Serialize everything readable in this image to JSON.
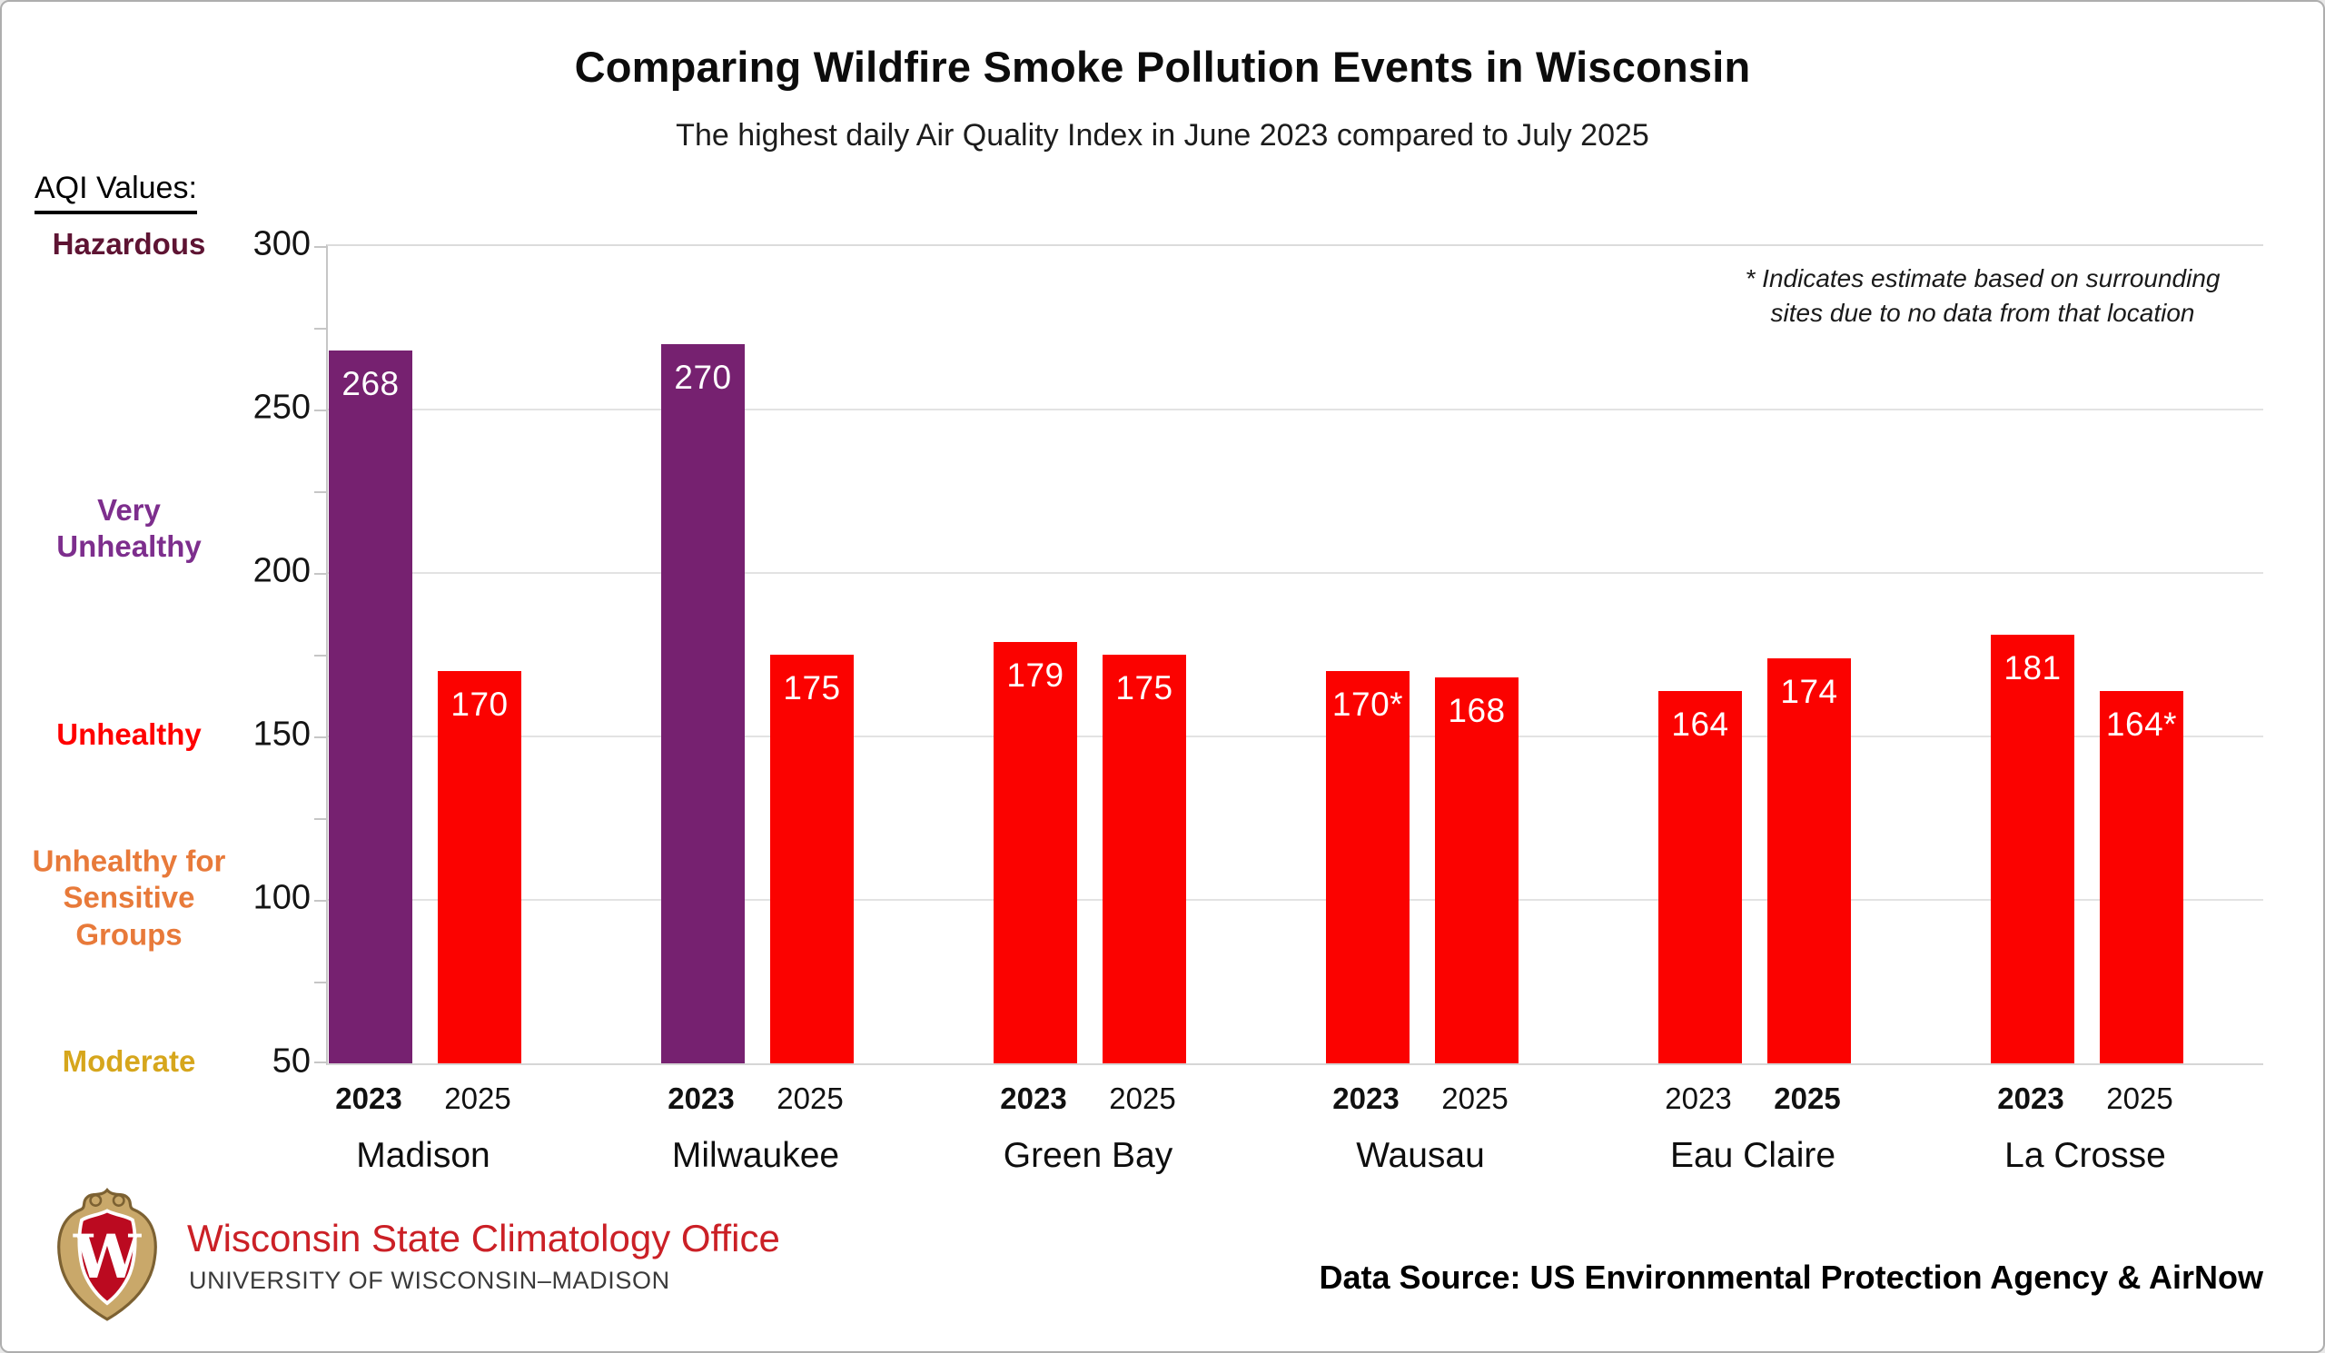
{
  "chart_data": {
    "type": "bar",
    "title": "Comparing Wildfire Smoke Pollution Events in Wisconsin",
    "subtitle": "The highest daily Air Quality Index in June 2023 compared to July 2025",
    "categories": [
      "Madison",
      "Milwaukee",
      "Green Bay",
      "Wausau",
      "Eau Claire",
      "La Crosse"
    ],
    "series": [
      {
        "name": "2023",
        "values": [
          268,
          270,
          179,
          170,
          164,
          181
        ],
        "display_labels": [
          "268",
          "270",
          "179",
          "170*",
          "164",
          "181"
        ]
      },
      {
        "name": "2025",
        "values": [
          170,
          175,
          175,
          168,
          174,
          164
        ],
        "display_labels": [
          "170",
          "175",
          "175",
          "168",
          "174",
          "164*"
        ]
      }
    ],
    "emphasized_year_per_city": [
      "2023",
      "2023",
      "2023",
      "2023",
      "2025",
      "2023"
    ],
    "ylabel": "",
    "xlabel": "",
    "ylim": [
      50,
      300
    ],
    "yticks": [
      300,
      250,
      200,
      150,
      100,
      50
    ],
    "minor_tick_step": 25,
    "gridlines_at": [
      250,
      200,
      150,
      100
    ],
    "grid": "horizontal, light gray",
    "legend_position": "none",
    "bar_colors": {
      "very_unhealthy_purple": "#762170",
      "unhealthy_red": "#FB0200",
      "purple_threshold": 200
    },
    "annotation": {
      "lines": [
        "* Indicates estimate based on surrounding",
        "sites due to no data from that location"
      ]
    }
  },
  "aqi_scale": {
    "heading": "AQI Values:",
    "labels": [
      {
        "lines": [
          "Hazardous"
        ],
        "color": "#5E1433",
        "aqi_level": 300
      },
      {
        "lines": [
          "Very",
          "Unhealthy"
        ],
        "color": "#7D2E8D",
        "aqi_level": 213
      },
      {
        "lines": [
          "Unhealthy"
        ],
        "color": "#FF0000",
        "aqi_level": 150
      },
      {
        "lines": [
          "Unhealthy for",
          "Sensitive",
          "Groups"
        ],
        "color": "#E87A3A",
        "aqi_level": 100
      },
      {
        "lines": [
          "Moderate"
        ],
        "color": "#D6A61C",
        "aqi_level": 50
      }
    ]
  },
  "footer": {
    "org_name": "Wisconsin State Climatology Office",
    "org_color": "#CB2026",
    "university": "UNIVERSITY OF WISCONSIN–MADISON",
    "source_credit": "Data Source: US Environmental Protection Agency & AirNow",
    "logo": "uw-madison-crest-logo"
  }
}
